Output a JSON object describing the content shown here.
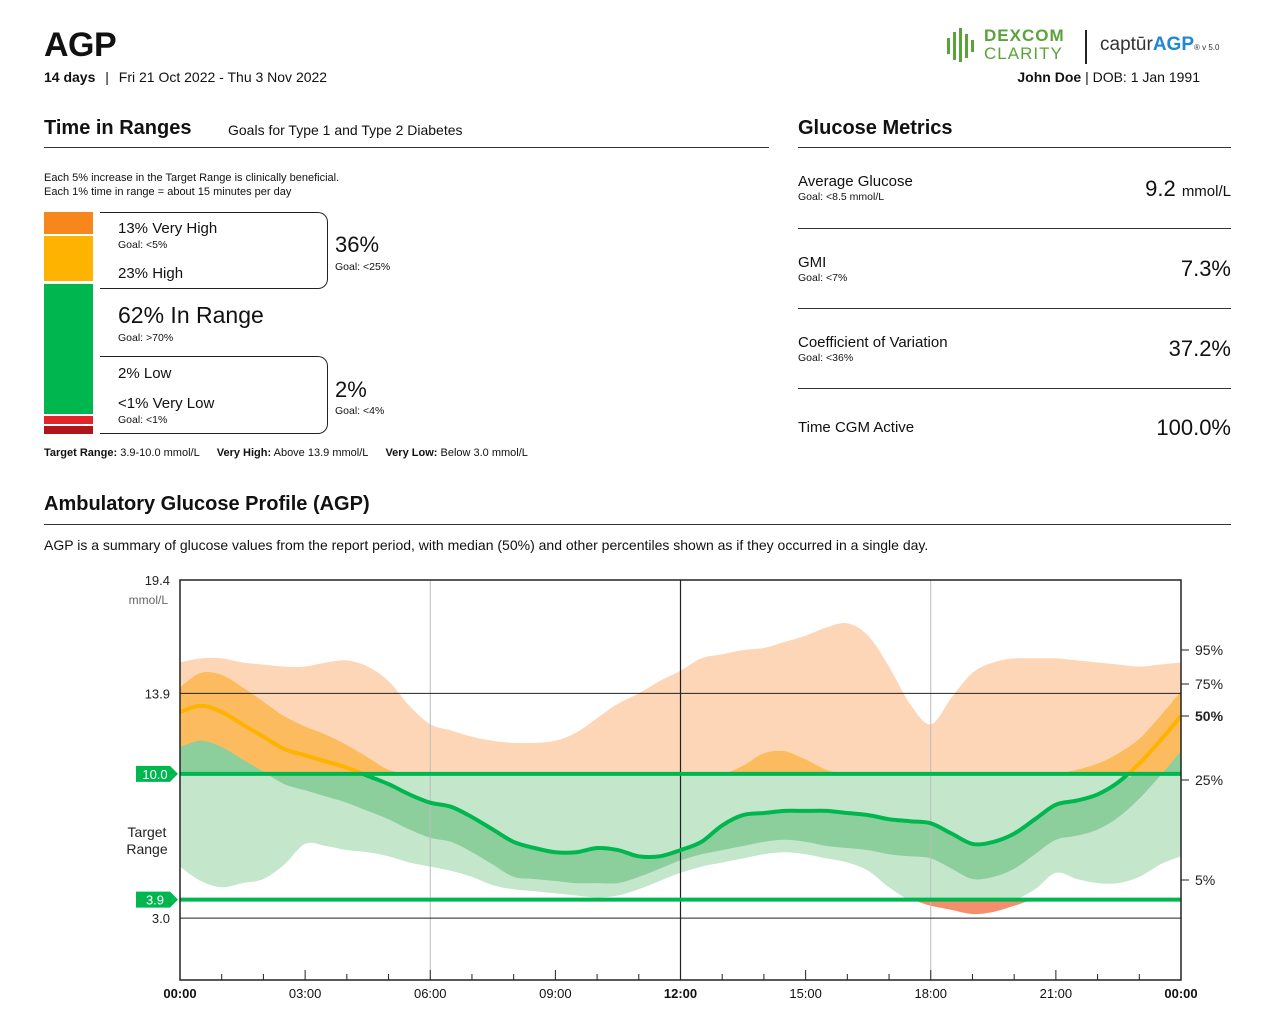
{
  "header": {
    "title": "AGP",
    "days": "14 days",
    "separator": "|",
    "date_range": "Fri 21 Oct 2022 - Thu 3 Nov 2022",
    "logo_dexcom": "DEXCOM",
    "logo_clarity": "CLARITY",
    "logo_captur": "captūr",
    "logo_agp": "AGP",
    "logo_version": "® v 5.0",
    "patient_name": "John Doe",
    "patient_sep": "|",
    "patient_dob": "DOB: 1 Jan 1991"
  },
  "tir": {
    "title": "Time in Ranges",
    "subtitle": "Goals for Type 1 and Type 2 Diabetes",
    "note1": "Each 5% increase in the Target Range is clinically beneficial.",
    "note2": "Each 1% time in range = about 15 minutes per day",
    "very_high_label": "13% Very High",
    "very_high_goal": "Goal: <5%",
    "high_label": "23% High",
    "high_total": "36%",
    "high_total_goal": "Goal: <25%",
    "in_range_label": "62% In Range",
    "in_range_goal": "Goal: >70%",
    "low_label": "2% Low",
    "very_low_label": "<1% Very Low",
    "very_low_goal": "Goal: <1%",
    "low_total": "2%",
    "low_total_goal": "Goal: <4%",
    "footer_target_key": "Target Range:",
    "footer_target_val": "3.9-10.0 mmol/L",
    "footer_vh_key": "Very High:",
    "footer_vh_val": "Above 13.9 mmol/L",
    "footer_vl_key": "Very Low:",
    "footer_vl_val": "Below 3.0 mmol/L",
    "bar": {
      "very_high": 13,
      "high": 23,
      "in_range": 62,
      "low": 2,
      "very_low": 1
    },
    "colors": {
      "very_high": "#f7861c",
      "high": "#fdb300",
      "in_range": "#00b74f",
      "low": "#e3242b",
      "very_low": "#b0151b"
    }
  },
  "metrics": {
    "title": "Glucose Metrics",
    "items": [
      {
        "name": "Average Glucose",
        "goal": "Goal: <8.5 mmol/L",
        "value": "9.2",
        "unit": "mmol/L"
      },
      {
        "name": "GMI",
        "goal": "Goal: <7%",
        "value": "7.3%",
        "unit": ""
      },
      {
        "name": "Coefficient of Variation",
        "goal": "Goal: <36%",
        "value": "37.2%",
        "unit": ""
      },
      {
        "name": "Time CGM Active",
        "goal": "",
        "value": "100.0%",
        "unit": ""
      }
    ]
  },
  "agp": {
    "title": "Ambulatory Glucose Profile (AGP)",
    "description": "AGP is a summary of glucose values from the report period, with median (50%) and other percentiles shown as if they occurred in a single day."
  },
  "chart_data": {
    "type": "area",
    "x_unit": "hours",
    "xlim": [
      0,
      24
    ],
    "ylim": [
      0,
      19.4
    ],
    "y_unit_label": "mmol/L",
    "y_ticks": [
      "19.4",
      "13.9",
      "3.0"
    ],
    "target_low": 3.9,
    "target_high": 10.0,
    "target_low_label": "3.9",
    "target_high_label": "10.0",
    "target_range_label": [
      "Target",
      "Range"
    ],
    "x_tick_labels": [
      "00:00",
      "03:00",
      "06:00",
      "09:00",
      "12:00",
      "15:00",
      "18:00",
      "21:00",
      "00:00"
    ],
    "percentile_labels": [
      "95%",
      "75%",
      "50%",
      "25%",
      "5%"
    ],
    "x": [
      0,
      0.5,
      1,
      1.5,
      2,
      2.5,
      3,
      3.5,
      4,
      4.5,
      5,
      5.5,
      6,
      6.5,
      7,
      7.5,
      8,
      8.5,
      9,
      9.5,
      10,
      10.5,
      11,
      11.5,
      12,
      12.5,
      13,
      13.5,
      14,
      14.5,
      15,
      15.5,
      16,
      16.5,
      17,
      17.5,
      18,
      18.5,
      19,
      19.5,
      20,
      20.5,
      21,
      21.5,
      22,
      22.5,
      23,
      23.5,
      24
    ],
    "series": [
      {
        "name": "95%",
        "values": [
          15.4,
          15.6,
          15.6,
          15.4,
          15.3,
          15.2,
          15.2,
          15.4,
          15.5,
          15.2,
          14.5,
          13.3,
          12.4,
          12.1,
          11.8,
          11.6,
          11.5,
          11.5,
          11.6,
          12.0,
          12.7,
          13.4,
          13.9,
          14.5,
          15.0,
          15.6,
          15.8,
          16.0,
          16.1,
          16.4,
          16.7,
          17.1,
          17.3,
          16.7,
          15.2,
          13.4,
          12.4,
          13.7,
          14.9,
          15.4,
          15.6,
          15.6,
          15.6,
          15.5,
          15.4,
          15.3,
          15.2,
          15.3,
          15.4
        ]
      },
      {
        "name": "75%",
        "values": [
          14.2,
          14.9,
          14.8,
          14.2,
          13.5,
          12.8,
          12.3,
          11.9,
          11.4,
          10.8,
          10.2,
          10.0,
          10.0,
          10.0,
          10.0,
          10.0,
          10.0,
          10.0,
          10.0,
          10.0,
          10.0,
          10.0,
          10.0,
          10.0,
          10.0,
          10.0,
          10.0,
          10.4,
          11.0,
          11.1,
          10.7,
          10.2,
          10.0,
          10.0,
          10.0,
          10.0,
          10.0,
          10.0,
          10.0,
          10.0,
          10.0,
          10.0,
          10.0,
          10.2,
          10.5,
          11.0,
          11.7,
          12.8,
          14.0
        ]
      },
      {
        "name": "50%",
        "values": [
          13.0,
          13.3,
          13.0,
          12.4,
          11.8,
          11.2,
          10.9,
          10.6,
          10.3,
          9.9,
          9.5,
          9.0,
          8.6,
          8.4,
          7.9,
          7.3,
          6.7,
          6.4,
          6.2,
          6.2,
          6.4,
          6.3,
          6.0,
          6.0,
          6.3,
          6.7,
          7.5,
          8.0,
          8.1,
          8.2,
          8.2,
          8.2,
          8.1,
          8.0,
          7.8,
          7.7,
          7.6,
          7.1,
          6.6,
          6.7,
          7.1,
          7.8,
          8.5,
          8.7,
          9.0,
          9.6,
          10.5,
          11.6,
          12.8
        ]
      },
      {
        "name": "25%",
        "values": [
          10.0,
          10.0,
          10.0,
          10.0,
          10.0,
          10.0,
          10.0,
          10.0,
          10.0,
          10.0,
          10.0,
          10.0,
          10.0,
          10.0,
          10.0,
          10.0,
          10.0,
          10.0,
          10.0,
          10.0,
          10.0,
          10.0,
          10.0,
          10.0,
          10.0,
          10.0,
          10.0,
          10.0,
          10.0,
          10.0,
          10.0,
          10.0,
          10.0,
          10.0,
          10.0,
          10.0,
          10.0,
          10.0,
          10.0,
          10.0,
          10.0,
          10.0,
          10.0,
          10.0,
          10.0,
          10.0,
          10.0,
          10.0,
          10.0
        ]
      },
      {
        "name": "5%",
        "values": [
          5.5,
          4.8,
          4.5,
          4.7,
          4.9,
          5.6,
          6.6,
          6.5,
          6.3,
          6.2,
          6.0,
          5.7,
          5.5,
          5.3,
          5.0,
          4.6,
          4.4,
          4.3,
          4.2,
          4.1,
          4.0,
          4.1,
          4.4,
          4.8,
          5.2,
          5.5,
          5.7,
          5.9,
          6.1,
          6.2,
          6.1,
          5.9,
          5.7,
          5.3,
          4.5,
          3.9,
          3.6,
          3.4,
          3.2,
          3.3,
          3.6,
          4.4,
          5.2,
          4.9,
          4.7,
          4.7,
          5.0,
          5.6,
          6.0
        ]
      }
    ],
    "band_colors": {
      "outer_high": "#fdd6b7",
      "inner_high": "#fdbb5f",
      "inner_range": "#8ccf9d",
      "outer_range": "#c4e6cb",
      "below_low": "#f48e6c",
      "median": "#00b74f",
      "median_high": "#fdb300",
      "target": "#00b74f"
    }
  }
}
